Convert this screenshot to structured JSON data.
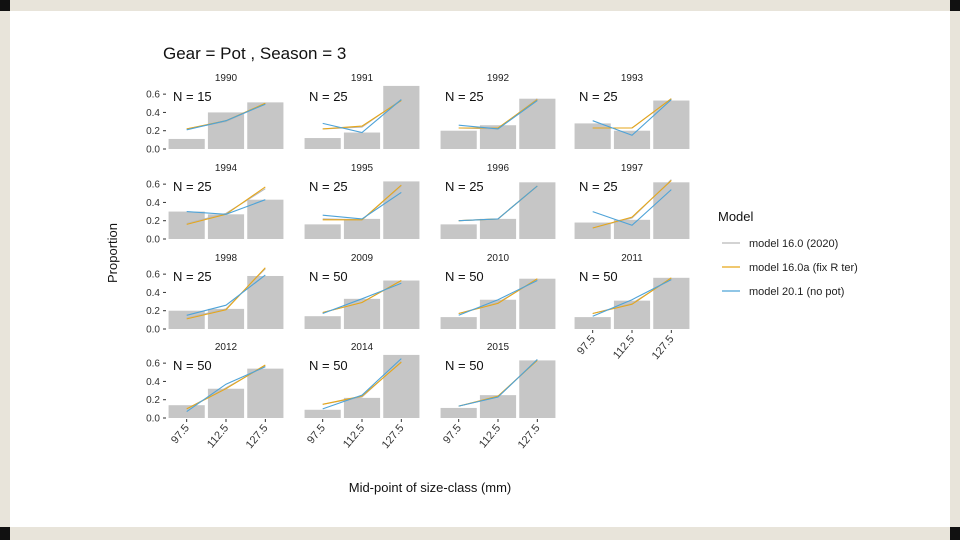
{
  "colors": {
    "bar": "#c6c6c6",
    "axis": "#333333",
    "series": [
      "#b9b9b9",
      "#e6a619",
      "#4ea3d8"
    ]
  },
  "chart_data": {
    "type": "bar",
    "title": "Gear = Pot , Season = 3",
    "xlabel": "Mid-point of size-class (mm)",
    "ylabel": "Proportion",
    "categories": [
      "97.5",
      "112.5",
      "127.5"
    ],
    "ylim": [
      0,
      0.7
    ],
    "yticks": [
      "0.0",
      "0.2",
      "0.4",
      "0.6"
    ],
    "legend": {
      "title": "Model",
      "position": "right",
      "entries": [
        "model 16.0 (2020)",
        "model 16.0a (fix R ter)",
        "model 20.1 (no pot)"
      ]
    },
    "panels": [
      {
        "year": "1990",
        "n_label": "N = 15",
        "observed": [
          0.11,
          0.4,
          0.51
        ],
        "series": [
          [
            0.22,
            0.3,
            0.5
          ],
          [
            0.22,
            0.31,
            0.5
          ],
          [
            0.21,
            0.31,
            0.49
          ]
        ]
      },
      {
        "year": "1991",
        "n_label": "N = 25",
        "observed": [
          0.12,
          0.18,
          0.69
        ],
        "series": [
          [
            0.22,
            0.24,
            0.54
          ],
          [
            0.22,
            0.25,
            0.53
          ],
          [
            0.28,
            0.18,
            0.54
          ]
        ]
      },
      {
        "year": "1992",
        "n_label": "N = 25",
        "observed": [
          0.2,
          0.26,
          0.55
        ],
        "series": [
          [
            0.23,
            0.22,
            0.55
          ],
          [
            0.23,
            0.23,
            0.54
          ],
          [
            0.26,
            0.22,
            0.53
          ]
        ]
      },
      {
        "year": "1993",
        "n_label": "N = 25",
        "observed": [
          0.28,
          0.2,
          0.53
        ],
        "series": [
          [
            0.23,
            0.23,
            0.55
          ],
          [
            0.23,
            0.23,
            0.55
          ],
          [
            0.31,
            0.15,
            0.54
          ]
        ]
      },
      {
        "year": "1994",
        "n_label": "N = 25",
        "observed": [
          0.3,
          0.27,
          0.43
        ],
        "series": [
          [
            0.17,
            0.28,
            0.55
          ],
          [
            0.16,
            0.27,
            0.57
          ],
          [
            0.3,
            0.27,
            0.43
          ]
        ]
      },
      {
        "year": "1995",
        "n_label": "N = 25",
        "observed": [
          0.16,
          0.22,
          0.63
        ],
        "series": [
          [
            0.22,
            0.21,
            0.58
          ],
          [
            0.21,
            0.21,
            0.59
          ],
          [
            0.26,
            0.22,
            0.51
          ]
        ]
      },
      {
        "year": "1996",
        "n_label": "N = 25",
        "observed": [
          0.16,
          0.22,
          0.62
        ],
        "series": [
          [
            0.2,
            0.22,
            0.58
          ],
          [
            0.2,
            0.22,
            0.58
          ],
          [
            0.2,
            0.22,
            0.58
          ]
        ]
      },
      {
        "year": "1997",
        "n_label": "N = 25",
        "observed": [
          0.18,
          0.21,
          0.62
        ],
        "series": [
          [
            0.12,
            0.23,
            0.65
          ],
          [
            0.12,
            0.24,
            0.64
          ],
          [
            0.3,
            0.15,
            0.54
          ]
        ]
      },
      {
        "year": "1998",
        "n_label": "N = 25",
        "observed": [
          0.2,
          0.22,
          0.58
        ],
        "series": [
          [
            0.12,
            0.22,
            0.66
          ],
          [
            0.11,
            0.21,
            0.67
          ],
          [
            0.15,
            0.26,
            0.59
          ]
        ]
      },
      {
        "year": "2009",
        "n_label": "N = 50",
        "observed": [
          0.14,
          0.33,
          0.53
        ],
        "series": [
          [
            0.18,
            0.29,
            0.53
          ],
          [
            0.18,
            0.29,
            0.53
          ],
          [
            0.17,
            0.33,
            0.5
          ]
        ]
      },
      {
        "year": "2010",
        "n_label": "N = 50",
        "observed": [
          0.13,
          0.32,
          0.55
        ],
        "series": [
          [
            0.17,
            0.29,
            0.54
          ],
          [
            0.17,
            0.28,
            0.55
          ],
          [
            0.15,
            0.32,
            0.53
          ]
        ]
      },
      {
        "year": "2011",
        "n_label": "N = 50",
        "observed": [
          0.13,
          0.31,
          0.56
        ],
        "series": [
          [
            0.17,
            0.28,
            0.55
          ],
          [
            0.17,
            0.27,
            0.56
          ],
          [
            0.14,
            0.32,
            0.54
          ]
        ]
      },
      {
        "year": "2012",
        "n_label": "N = 50",
        "observed": [
          0.14,
          0.32,
          0.54
        ],
        "series": [
          [
            0.1,
            0.33,
            0.57
          ],
          [
            0.1,
            0.32,
            0.58
          ],
          [
            0.07,
            0.37,
            0.56
          ]
        ]
      },
      {
        "year": "2014",
        "n_label": "N = 50",
        "observed": [
          0.09,
          0.22,
          0.69
        ],
        "series": [
          [
            0.15,
            0.23,
            0.62
          ],
          [
            0.15,
            0.24,
            0.61
          ],
          [
            0.1,
            0.25,
            0.65
          ]
        ]
      },
      {
        "year": "2015",
        "n_label": "N = 50",
        "observed": [
          0.11,
          0.25,
          0.63
        ],
        "series": [
          [
            0.13,
            0.23,
            0.64
          ],
          [
            0.13,
            0.24,
            0.63
          ],
          [
            0.13,
            0.23,
            0.64
          ]
        ]
      }
    ]
  }
}
